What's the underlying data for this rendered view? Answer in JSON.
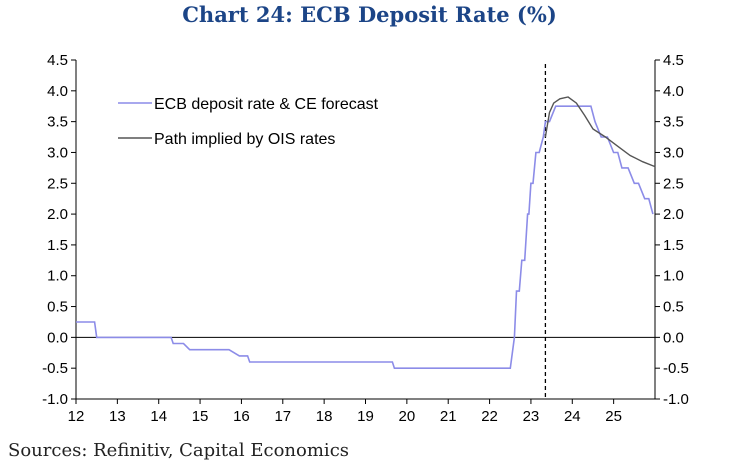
{
  "title": "Chart 24: ECB Deposit Rate (%)",
  "source": "Sources: Refinitiv, Capital Economics",
  "chart_data": {
    "type": "line",
    "title": "Chart 24: ECB Deposit Rate (%)",
    "xlabel": "",
    "ylabel": "",
    "xlim": [
      12,
      26
    ],
    "ylim": [
      -1.0,
      4.5
    ],
    "x_ticks": [
      "12",
      "13",
      "14",
      "15",
      "16",
      "17",
      "18",
      "19",
      "20",
      "21",
      "22",
      "23",
      "24",
      "25"
    ],
    "y_ticks": [
      "4.5",
      "4.0",
      "3.5",
      "3.0",
      "2.5",
      "2.0",
      "1.5",
      "1.0",
      "0.5",
      "0.0",
      "-0.5",
      "-1.0"
    ],
    "y_ticks_right": [
      "4.5",
      "4.0",
      "3.5",
      "3.0",
      "2.5",
      "2.0",
      "1.5",
      "1.0",
      "0.5",
      "0.0",
      "-0.5",
      "-1.0"
    ],
    "zero_line": 0.0,
    "vertical_marker_x": 23.35,
    "legend_position": "top-left",
    "series": [
      {
        "name": "ECB deposit rate & CE forecast",
        "color": "#8c8ce8",
        "x": [
          12.0,
          12.45,
          12.5,
          14.3,
          14.35,
          14.6,
          14.75,
          15.7,
          15.95,
          16.15,
          16.2,
          19.65,
          19.7,
          22.5,
          22.6,
          22.65,
          22.72,
          22.78,
          22.85,
          22.92,
          22.95,
          23.0,
          23.05,
          23.12,
          23.2,
          23.3,
          23.35,
          23.45,
          23.6,
          24.45,
          24.55,
          24.7,
          24.85,
          25.0,
          25.1,
          25.2,
          25.35,
          25.5,
          25.6,
          25.75,
          25.85,
          25.95
        ],
        "y": [
          0.25,
          0.25,
          0.0,
          0.0,
          -0.1,
          -0.1,
          -0.2,
          -0.2,
          -0.3,
          -0.3,
          -0.4,
          -0.4,
          -0.5,
          -0.5,
          0.0,
          0.75,
          0.75,
          1.25,
          1.25,
          2.0,
          2.0,
          2.5,
          2.5,
          3.0,
          3.0,
          3.25,
          3.5,
          3.5,
          3.75,
          3.75,
          3.5,
          3.25,
          3.25,
          3.0,
          3.0,
          2.75,
          2.75,
          2.5,
          2.5,
          2.25,
          2.25,
          2.0
        ]
      },
      {
        "name": "Path implied by OIS rates",
        "color": "#555555",
        "x": [
          23.35,
          23.45,
          23.55,
          23.7,
          23.9,
          24.1,
          24.3,
          24.5,
          24.8,
          25.1,
          25.4,
          25.7,
          26.0
        ],
        "y": [
          3.25,
          3.65,
          3.8,
          3.87,
          3.9,
          3.8,
          3.6,
          3.38,
          3.25,
          3.1,
          2.95,
          2.85,
          2.77
        ]
      }
    ]
  }
}
